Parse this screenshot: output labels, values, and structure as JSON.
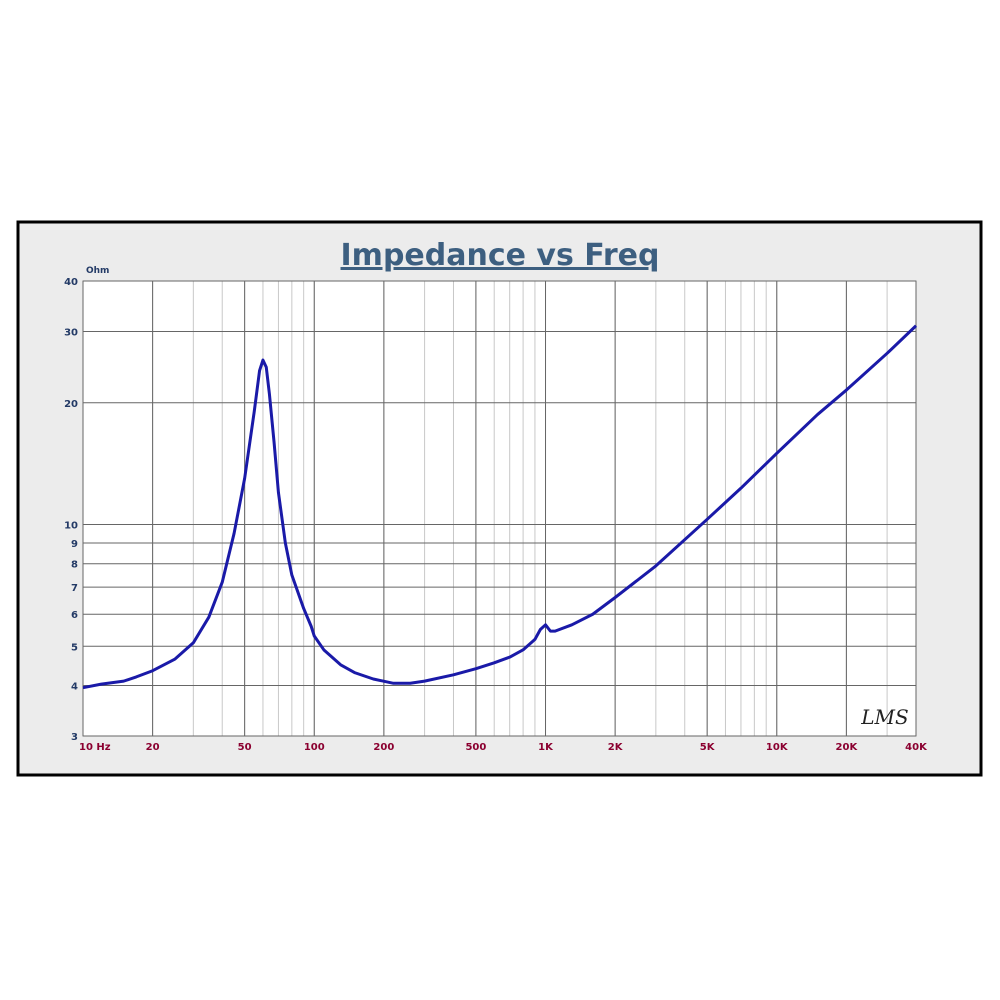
{
  "chart_data": {
    "type": "line",
    "title": "Impedance vs Freq",
    "y_label": "Ohm",
    "annotation": "LMS",
    "x_scale": "log",
    "y_scale": "log",
    "grid": true,
    "minor_x_grid": true,
    "xlim": [
      10,
      40000
    ],
    "ylim": [
      3,
      40
    ],
    "xticks": [
      {
        "value": 10,
        "label": "10  Hz"
      },
      20,
      50,
      100,
      200,
      500,
      {
        "value": 1000,
        "label": "1K"
      },
      {
        "value": 2000,
        "label": "2K"
      },
      {
        "value": 5000,
        "label": "5K"
      },
      {
        "value": 10000,
        "label": "10K"
      },
      {
        "value": 20000,
        "label": "20K"
      },
      {
        "value": 40000,
        "label": "40K"
      }
    ],
    "yticks": [
      3,
      4,
      5,
      6,
      7,
      8,
      9,
      10,
      20,
      30,
      40
    ],
    "x": [
      10,
      12,
      15,
      17,
      20,
      25,
      30,
      35,
      40,
      45,
      50,
      55,
      58,
      60,
      62,
      64,
      67,
      70,
      75,
      80,
      90,
      97,
      100,
      110,
      130,
      150,
      180,
      220,
      260,
      300,
      400,
      500,
      600,
      700,
      800,
      900,
      950,
      1000,
      1050,
      1100,
      1300,
      1600,
      2000,
      3000,
      5000,
      7000,
      10000,
      15000,
      20000,
      30000,
      40000
    ],
    "series": [
      {
        "name": "Impedance",
        "color": "#1a1aa8",
        "values": [
          3.95,
          4.03,
          4.1,
          4.2,
          4.35,
          4.65,
          5.1,
          5.9,
          7.2,
          9.5,
          13,
          19,
          24,
          25.5,
          24.5,
          21,
          16,
          12,
          9,
          7.5,
          6.2,
          5.6,
          5.3,
          4.9,
          4.5,
          4.3,
          4.15,
          4.05,
          4.05,
          4.1,
          4.25,
          4.4,
          4.55,
          4.7,
          4.9,
          5.2,
          5.5,
          5.65,
          5.45,
          5.45,
          5.65,
          6.0,
          6.6,
          7.9,
          10.3,
          12.3,
          15,
          18.7,
          21.5,
          26.5,
          31
        ]
      }
    ]
  }
}
